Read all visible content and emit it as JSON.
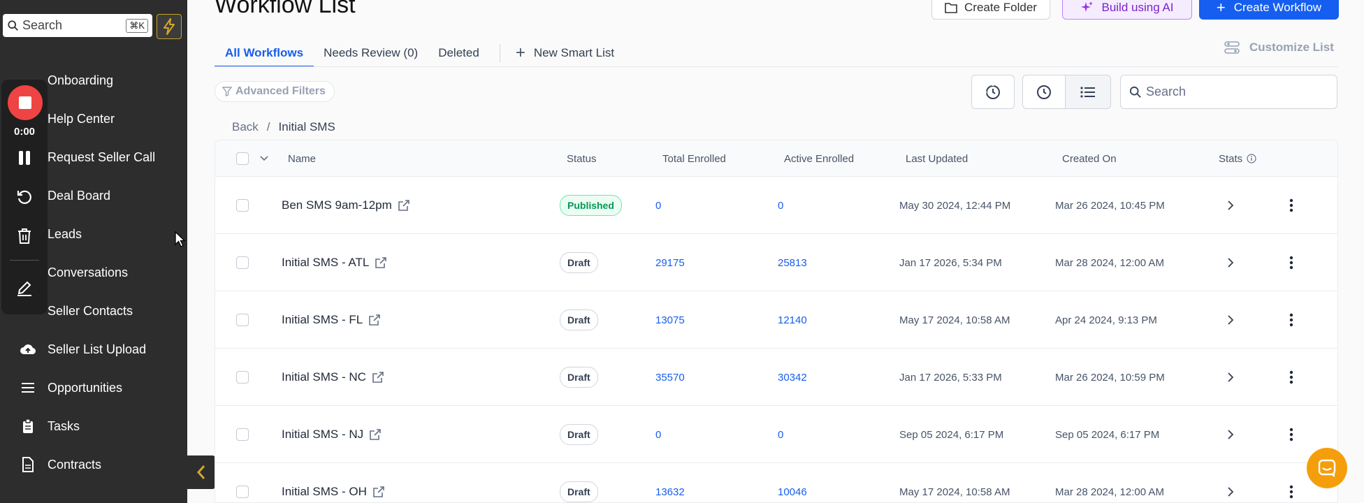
{
  "sidebar": {
    "search_label": "Search",
    "search_shortcut": "⌘K",
    "items": [
      {
        "label": "Onboarding",
        "icon": "onboarding-icon"
      },
      {
        "label": "Help Center",
        "icon": "help-icon"
      },
      {
        "label": "Request Seller Call",
        "icon": "phone-icon"
      },
      {
        "label": "Deal Board",
        "icon": "board-icon"
      },
      {
        "label": "Leads",
        "icon": "leads-icon"
      },
      {
        "label": "Conversations",
        "icon": "chat-icon"
      },
      {
        "label": "Seller Contacts",
        "icon": "contacts-icon"
      },
      {
        "label": "Seller List Upload",
        "icon": "cloud-upload-icon"
      },
      {
        "label": "Opportunities",
        "icon": "list-icon"
      },
      {
        "label": "Tasks",
        "icon": "clipboard-icon"
      },
      {
        "label": "Contracts",
        "icon": "document-icon"
      }
    ]
  },
  "recorder": {
    "time": "0:00"
  },
  "header": {
    "title": "Workflow List",
    "create_folder": "Create Folder",
    "build_ai": "Build using AI",
    "create_workflow": "Create Workflow"
  },
  "tabs": [
    {
      "label": "All Workflows"
    },
    {
      "label": "Needs Review (0)"
    },
    {
      "label": "Deleted"
    }
  ],
  "new_smart_list": "New Smart List",
  "customize_list": "Customize List",
  "advanced_filters": "Advanced Filters",
  "search_placeholder": "Search",
  "breadcrumb": {
    "back": "Back",
    "sep": "/",
    "current": "Initial SMS"
  },
  "table": {
    "columns": [
      "Name",
      "Status",
      "Total Enrolled",
      "Active Enrolled",
      "Last Updated",
      "Created On",
      "Stats"
    ],
    "rows": [
      {
        "name": "Ben SMS 9am-12pm",
        "status": "Published",
        "total": "0",
        "active": "0",
        "updated": "May 30 2024, 12:44 PM",
        "created": "Mar 26 2024, 10:45 PM"
      },
      {
        "name": "Initial SMS - ATL",
        "status": "Draft",
        "total": "29175",
        "active": "25813",
        "updated": "Jan 17 2026, 5:34 PM",
        "created": "Mar 28 2024, 12:00 AM"
      },
      {
        "name": "Initial SMS - FL",
        "status": "Draft",
        "total": "13075",
        "active": "12140",
        "updated": "May 17 2024, 10:58 AM",
        "created": "Apr 24 2024, 9:13 PM"
      },
      {
        "name": "Initial SMS - NC",
        "status": "Draft",
        "total": "35570",
        "active": "30342",
        "updated": "Jan 17 2026, 5:33 PM",
        "created": "Mar 26 2024, 10:59 PM"
      },
      {
        "name": "Initial SMS - NJ",
        "status": "Draft",
        "total": "0",
        "active": "0",
        "updated": "Sep 05 2024, 6:17 PM",
        "created": "Sep 05 2024, 6:17 PM"
      },
      {
        "name": "Initial SMS - OH",
        "status": "Draft",
        "total": "13632",
        "active": "10046",
        "updated": "May 17 2024, 10:58 AM",
        "created": "Mar 28 2024, 12:00 AM"
      }
    ]
  },
  "colors": {
    "primary": "#155eef",
    "sidebar_bg": "#2d2d2d",
    "recorder_red": "#ef4444",
    "published_green": "#039855",
    "chat_orange": "#f59e0b"
  }
}
